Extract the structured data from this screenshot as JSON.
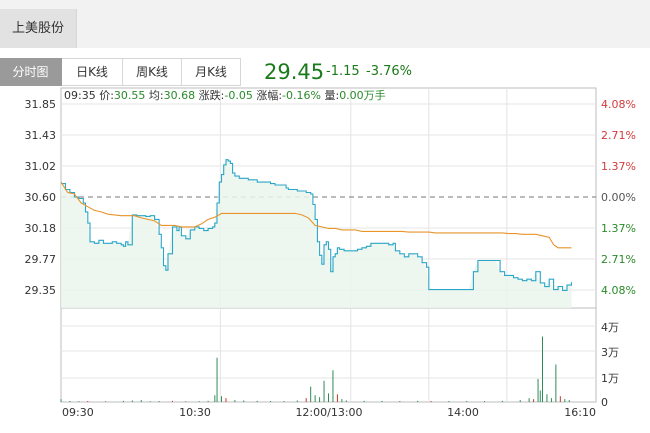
{
  "stock": {
    "name": "上美股份"
  },
  "tabs": [
    {
      "label": "分时图",
      "active": true
    },
    {
      "label": "日K线",
      "active": false
    },
    {
      "label": "周K线",
      "active": false
    },
    {
      "label": "月K线",
      "active": false
    }
  ],
  "quote": {
    "price": "29.45",
    "change": "-1.15",
    "change_pct": "-3.76%",
    "color": "#1a7a1a"
  },
  "info_bar": {
    "time": "09:35",
    "price_label": "价:",
    "price": "30.55",
    "avg_label": "均:",
    "avg": "30.68",
    "change_label": "涨跌:",
    "change": "-0.05",
    "pct_label": "涨幅:",
    "pct": "-0.16%",
    "volume_label": "量:",
    "volume": "0.00万手"
  },
  "chart_data": {
    "type": "line",
    "title": "",
    "reference_price": 30.6,
    "y_ticks": [
      "31.85",
      "31.43",
      "31.02",
      "30.60",
      "30.18",
      "29.77",
      "29.35"
    ],
    "pct_ticks": [
      "4.08%",
      "2.71%",
      "1.37%",
      "0.00%",
      "1.37%",
      "2.71%",
      "4.08%"
    ],
    "x_ticks": [
      "09:30",
      "10:30",
      "12:00/13:00",
      "14:00",
      "16:10"
    ],
    "volume_ticks": [
      "4万",
      "3万",
      "1万",
      "0"
    ],
    "ylim": [
      29.15,
      31.95
    ],
    "series": [
      {
        "name": "价",
        "color": "#2aa6c8",
        "points": [
          [
            0,
            30.78
          ],
          [
            2,
            30.7
          ],
          [
            4,
            30.66
          ],
          [
            6,
            30.6
          ],
          [
            8,
            30.58
          ],
          [
            10,
            30.52
          ],
          [
            11,
            30.4
          ],
          [
            12,
            30.25
          ],
          [
            13,
            30.0
          ],
          [
            15,
            29.98
          ],
          [
            17,
            30.02
          ],
          [
            19,
            29.98
          ],
          [
            21,
            29.98
          ],
          [
            23,
            30.0
          ],
          [
            25,
            29.98
          ],
          [
            27,
            29.96
          ],
          [
            28,
            29.94
          ],
          [
            29,
            30.0
          ],
          [
            30,
            29.96
          ],
          [
            32,
            30.36
          ],
          [
            34,
            30.35
          ],
          [
            36,
            30.35
          ],
          [
            38,
            30.34
          ],
          [
            40,
            30.35
          ],
          [
            42,
            30.3
          ],
          [
            44,
            30.1
          ],
          [
            45,
            29.92
          ],
          [
            46,
            29.68
          ],
          [
            47,
            29.62
          ],
          [
            48,
            29.84
          ],
          [
            50,
            30.2
          ],
          [
            52,
            30.15
          ],
          [
            53,
            30.2
          ],
          [
            54,
            30.08
          ],
          [
            56,
            30.04
          ],
          [
            58,
            30.16
          ],
          [
            60,
            30.2
          ],
          [
            62,
            30.18
          ],
          [
            64,
            30.15
          ],
          [
            66,
            30.18
          ],
          [
            68,
            30.2
          ],
          [
            69,
            30.25
          ],
          [
            70,
            30.52
          ],
          [
            71,
            30.8
          ],
          [
            72,
            30.9
          ],
          [
            73,
            31.03
          ],
          [
            74,
            31.1
          ],
          [
            75,
            31.08
          ],
          [
            76,
            31.05
          ],
          [
            77,
            30.92
          ],
          [
            78,
            30.88
          ],
          [
            80,
            30.85
          ],
          [
            82,
            30.85
          ],
          [
            84,
            30.83
          ],
          [
            86,
            30.83
          ],
          [
            88,
            30.8
          ],
          [
            90,
            30.8
          ],
          [
            92,
            30.8
          ],
          [
            94,
            30.78
          ],
          [
            96,
            30.76
          ],
          [
            98,
            30.76
          ],
          [
            100,
            30.76
          ],
          [
            101,
            30.72
          ],
          [
            102,
            30.7
          ],
          [
            104,
            30.7
          ],
          [
            106,
            30.68
          ],
          [
            108,
            30.68
          ],
          [
            110,
            30.66
          ],
          [
            112,
            30.64
          ],
          [
            113,
            30.5
          ],
          [
            114,
            30.3
          ],
          [
            115,
            30.0
          ],
          [
            116,
            29.82
          ],
          [
            117,
            29.7
          ],
          [
            118,
            29.96
          ],
          [
            119,
            30.0
          ],
          [
            120,
            29.9
          ],
          [
            121,
            29.6
          ],
          [
            122,
            29.8
          ],
          [
            123,
            29.84
          ],
          [
            124,
            29.92
          ],
          [
            125,
            29.9
          ],
          [
            127,
            29.88
          ],
          [
            129,
            29.88
          ],
          [
            131,
            29.88
          ],
          [
            133,
            29.9
          ],
          [
            135,
            29.92
          ],
          [
            137,
            29.94
          ],
          [
            139,
            29.98
          ],
          [
            141,
            29.98
          ],
          [
            143,
            29.98
          ],
          [
            145,
            29.98
          ],
          [
            147,
            29.96
          ],
          [
            149,
            29.98
          ],
          [
            150,
            29.88
          ],
          [
            152,
            29.84
          ],
          [
            154,
            29.8
          ],
          [
            156,
            29.84
          ],
          [
            158,
            29.84
          ],
          [
            160,
            29.8
          ],
          [
            162,
            29.72
          ],
          [
            164,
            29.66
          ],
          [
            165,
            29.36
          ],
          [
            167,
            29.36
          ],
          [
            169,
            29.36
          ],
          [
            171,
            29.36
          ],
          [
            173,
            29.36
          ],
          [
            175,
            29.36
          ],
          [
            177,
            29.36
          ],
          [
            179,
            29.36
          ],
          [
            181,
            29.36
          ],
          [
            183,
            29.36
          ],
          [
            185,
            29.6
          ],
          [
            187,
            29.75
          ],
          [
            189,
            29.75
          ],
          [
            191,
            29.75
          ],
          [
            193,
            29.75
          ],
          [
            195,
            29.75
          ],
          [
            197,
            29.6
          ],
          [
            199,
            29.55
          ],
          [
            201,
            29.55
          ],
          [
            203,
            29.52
          ],
          [
            205,
            29.5
          ],
          [
            207,
            29.48
          ],
          [
            209,
            29.5
          ],
          [
            211,
            29.48
          ],
          [
            213,
            29.6
          ],
          [
            215,
            29.45
          ],
          [
            217,
            29.4
          ],
          [
            219,
            29.5
          ],
          [
            221,
            29.36
          ],
          [
            223,
            29.4
          ],
          [
            225,
            29.35
          ],
          [
            227,
            29.42
          ],
          [
            229,
            29.46
          ]
        ]
      },
      {
        "name": "均",
        "color": "#e8942a",
        "points": [
          [
            0,
            30.8
          ],
          [
            3,
            30.66
          ],
          [
            6,
            30.64
          ],
          [
            9,
            30.52
          ],
          [
            12,
            30.47
          ],
          [
            15,
            30.42
          ],
          [
            18,
            30.4
          ],
          [
            21,
            30.37
          ],
          [
            24,
            30.36
          ],
          [
            27,
            30.35
          ],
          [
            30,
            30.35
          ],
          [
            33,
            30.35
          ],
          [
            36,
            30.32
          ],
          [
            39,
            30.3
          ],
          [
            42,
            30.28
          ],
          [
            45,
            30.22
          ],
          [
            48,
            30.22
          ],
          [
            51,
            30.22
          ],
          [
            54,
            30.2
          ],
          [
            57,
            30.2
          ],
          [
            60,
            30.2
          ],
          [
            63,
            30.24
          ],
          [
            66,
            30.3
          ],
          [
            69,
            30.33
          ],
          [
            72,
            30.38
          ],
          [
            75,
            30.38
          ],
          [
            78,
            30.38
          ],
          [
            81,
            30.38
          ],
          [
            84,
            30.38
          ],
          [
            87,
            30.38
          ],
          [
            90,
            30.38
          ],
          [
            93,
            30.38
          ],
          [
            96,
            30.38
          ],
          [
            99,
            30.38
          ],
          [
            102,
            30.38
          ],
          [
            105,
            30.38
          ],
          [
            108,
            30.36
          ],
          [
            111,
            30.32
          ],
          [
            114,
            30.22
          ],
          [
            117,
            30.2
          ],
          [
            120,
            30.18
          ],
          [
            123,
            30.18
          ],
          [
            126,
            30.16
          ],
          [
            129,
            30.16
          ],
          [
            132,
            30.16
          ],
          [
            135,
            30.14
          ],
          [
            138,
            30.14
          ],
          [
            141,
            30.14
          ],
          [
            144,
            30.14
          ],
          [
            147,
            30.14
          ],
          [
            150,
            30.14
          ],
          [
            153,
            30.14
          ],
          [
            156,
            30.13
          ],
          [
            159,
            30.13
          ],
          [
            162,
            30.13
          ],
          [
            165,
            30.13
          ],
          [
            168,
            30.12
          ],
          [
            171,
            30.12
          ],
          [
            174,
            30.12
          ],
          [
            177,
            30.12
          ],
          [
            180,
            30.12
          ],
          [
            183,
            30.12
          ],
          [
            186,
            30.12
          ],
          [
            189,
            30.12
          ],
          [
            192,
            30.12
          ],
          [
            195,
            30.12
          ],
          [
            198,
            30.12
          ],
          [
            201,
            30.11
          ],
          [
            204,
            30.11
          ],
          [
            207,
            30.1
          ],
          [
            210,
            30.1
          ],
          [
            213,
            30.1
          ],
          [
            216,
            30.08
          ],
          [
            219,
            30.06
          ],
          [
            221,
            29.96
          ],
          [
            223,
            29.92
          ],
          [
            226,
            29.92
          ],
          [
            229,
            29.92
          ]
        ]
      }
    ],
    "volume": {
      "color": "#2e8b57",
      "bars": [
        [
          0,
          0.15
        ],
        [
          4,
          0.05
        ],
        [
          8,
          0.04
        ],
        [
          12,
          0.05
        ],
        [
          20,
          0.04
        ],
        [
          28,
          0.06
        ],
        [
          32,
          0.08
        ],
        [
          36,
          0.1
        ],
        [
          40,
          0.04
        ],
        [
          44,
          0.05
        ],
        [
          50,
          0.06
        ],
        [
          56,
          0.04
        ],
        [
          62,
          0.04
        ],
        [
          66,
          0.06
        ],
        [
          69,
          0.35
        ],
        [
          70,
          2.3
        ],
        [
          72,
          0.3
        ],
        [
          74,
          0.2
        ],
        [
          78,
          0.1
        ],
        [
          82,
          0.08
        ],
        [
          88,
          0.06
        ],
        [
          94,
          0.05
        ],
        [
          100,
          0.05
        ],
        [
          106,
          0.08
        ],
        [
          110,
          0.2
        ],
        [
          112,
          0.8
        ],
        [
          114,
          0.35
        ],
        [
          116,
          0.25
        ],
        [
          118,
          1.1
        ],
        [
          120,
          0.45
        ],
        [
          122,
          1.65
        ],
        [
          124,
          0.4
        ],
        [
          126,
          0.15
        ],
        [
          128,
          0.08
        ],
        [
          136,
          0.06
        ],
        [
          144,
          0.06
        ],
        [
          152,
          0.05
        ],
        [
          160,
          0.06
        ],
        [
          166,
          0.05
        ],
        [
          174,
          0.05
        ],
        [
          182,
          0.05
        ],
        [
          190,
          0.05
        ],
        [
          198,
          0.06
        ],
        [
          206,
          0.1
        ],
        [
          210,
          0.2
        ],
        [
          212,
          0.15
        ],
        [
          214,
          1.2
        ],
        [
          215,
          0.6
        ],
        [
          216,
          3.4
        ],
        [
          218,
          0.4
        ],
        [
          220,
          0.2
        ],
        [
          222,
          1.95
        ],
        [
          224,
          0.3
        ],
        [
          226,
          0.15
        ],
        [
          228,
          0.1
        ]
      ]
    }
  }
}
